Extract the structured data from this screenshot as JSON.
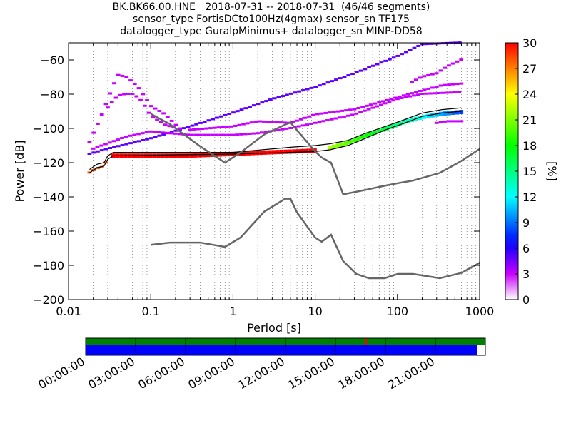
{
  "header": {
    "line1": "BK.BK66.00.HNE   2018-07-31 -- 2018-07-31  (46/46 segments)",
    "line2": "sensor_type FortisDCto100Hz(4gmax) sensor_sn TF175",
    "line3": "datalogger_type GuralpMinimus+ datalogger_sn MINP-DD58"
  },
  "chart_data": {
    "type": "heatmap",
    "title": "BK.BK66.00.HNE   2018-07-31 -- 2018-07-31  (46/46 segments)",
    "xlabel": "Period [s]",
    "ylabel": "Power [dB]",
    "xscale": "log",
    "xlim": [
      0.01,
      1000
    ],
    "ylim": [
      -200,
      -50
    ],
    "xticks": [
      0.01,
      0.1,
      1,
      10,
      100,
      1000
    ],
    "xtick_labels": [
      "0.01",
      "0.1",
      "1",
      "10",
      "100",
      "1000"
    ],
    "yticks": [
      -200,
      -180,
      -160,
      -140,
      -120,
      -100,
      -80,
      -60
    ],
    "ytick_labels": [
      "−200",
      "−180",
      "−160",
      "−140",
      "−120",
      "−100",
      "−80",
      "−60"
    ],
    "colorbar": {
      "label": "[%]",
      "range": [
        0,
        30
      ],
      "ticks": [
        0,
        3,
        6,
        9,
        12,
        15,
        18,
        21,
        24,
        27,
        30
      ],
      "tick_labels": [
        "0",
        "3",
        "6",
        "9",
        "12",
        "15",
        "18",
        "21",
        "24",
        "27",
        "30"
      ]
    },
    "noise_models": [
      {
        "name": "NHNM",
        "x": [
          0.1,
          0.17,
          0.4,
          0.8,
          1.24,
          2.4,
          4.3,
          5,
          6,
          10,
          12,
          15.6,
          21.9,
          31.6,
          45,
          70,
          101,
          154,
          328,
          600,
          1000
        ],
        "y": [
          -91.5,
          -97.4,
          -110.5,
          -120,
          -114,
          -103.5,
          -97.8,
          -96.5,
          -101,
          -113.5,
          -117,
          -120,
          -138.5,
          -137,
          -135.5,
          -133.5,
          -132,
          -130.5,
          -126,
          -119,
          -112
        ]
      },
      {
        "name": "NLNM",
        "x": [
          0.1,
          0.17,
          0.4,
          0.8,
          1.24,
          2.4,
          4.3,
          5,
          6,
          10,
          12,
          15.6,
          21.9,
          31.6,
          45,
          70,
          101,
          154,
          328,
          600,
          1000
        ],
        "y": [
          -168,
          -166.7,
          -166.7,
          -169.2,
          -163.7,
          -148.6,
          -141.1,
          -141.1,
          -149,
          -163.8,
          -166.2,
          -162.1,
          -177.5,
          -185,
          -187.5,
          -187.5,
          -185,
          -185,
          -187.5,
          -184.4,
          -178.5
        ]
      }
    ],
    "percentile_lines": [
      {
        "name": "mode",
        "x": [
          0.018,
          0.022,
          0.027,
          0.03,
          0.035,
          1,
          10,
          15,
          25,
          40,
          70,
          120,
          200,
          350,
          600
        ],
        "y": [
          -126,
          -123,
          -122,
          -118,
          -116,
          -115,
          -113.5,
          -112.5,
          -110,
          -106,
          -101,
          -97,
          -93,
          -91,
          -90
        ]
      },
      {
        "name": "upper",
        "x": [
          0.018,
          0.022,
          0.027,
          0.03,
          0.035,
          1,
          5,
          10,
          15,
          25,
          40,
          70,
          120,
          200,
          350,
          600
        ],
        "y": [
          -124,
          -121,
          -120,
          -116,
          -114,
          -114,
          -111,
          -110,
          -109,
          -107,
          -103,
          -99,
          -95,
          -91,
          -89,
          -88
        ]
      }
    ],
    "data_bands": [
      {
        "name": "main-band",
        "color_pct": 30,
        "x": [
          0.035,
          0.3,
          1,
          3,
          6,
          10
        ],
        "y": [
          -115.5,
          -115.5,
          -114.5,
          -113.5,
          -113,
          -112.5
        ]
      },
      {
        "name": "long-period-band",
        "color_pct": 15,
        "x": [
          15,
          25,
          40,
          70,
          120,
          200,
          350,
          600
        ],
        "y": [
          -111,
          -108,
          -104,
          -100,
          -96,
          -93,
          -91,
          -90
        ]
      },
      {
        "name": "early-points",
        "color_pct": 28,
        "x": [
          0.018,
          0.022,
          0.027,
          0.03
        ],
        "y": [
          -126,
          -123.5,
          -122.5,
          -118
        ]
      },
      {
        "name": "rising-trace",
        "color_pct": 5,
        "x": [
          0.018,
          0.03,
          0.1,
          0.3,
          1,
          3,
          10,
          30,
          100,
          200,
          600
        ],
        "y": [
          -115,
          -112,
          -106,
          -99,
          -91,
          -83,
          -76,
          -68,
          -58,
          -51,
          -50
        ]
      },
      {
        "name": "upper-hump",
        "color_pct": 3,
        "x": [
          0.018,
          0.025,
          0.035,
          0.04,
          0.05,
          0.06,
          0.07,
          0.08,
          0.1,
          0.15,
          0.2,
          0.25
        ],
        "y": [
          -108,
          -93,
          -75,
          -69,
          -70,
          -73,
          -76,
          -80,
          -87,
          -92,
          -98,
          -102
        ]
      },
      {
        "name": "second-hump",
        "color_pct": 3,
        "x": [
          0.03,
          0.035,
          0.04,
          0.05,
          0.06,
          0.07,
          0.08,
          0.1,
          0.15,
          0.2
        ],
        "y": [
          -88,
          -84,
          -81,
          -80,
          -80,
          -82,
          -85,
          -93,
          -98,
          -100
        ]
      },
      {
        "name": "mid-trace",
        "color_pct": 3,
        "x": [
          0.02,
          0.05,
          0.1,
          0.3,
          0.5,
          1,
          2,
          5,
          10,
          30,
          100,
          200,
          600
        ],
        "y": [
          -112,
          -105,
          -102,
          -104,
          -104,
          -104,
          -103,
          -100,
          -97,
          -92,
          -83,
          -80,
          -79
        ]
      },
      {
        "name": "low-trace",
        "color_pct": 3,
        "x": [
          0.3,
          1,
          2,
          5,
          10,
          30,
          60,
          100,
          200,
          350,
          600
        ],
        "y": [
          -101,
          -99,
          -96,
          -97,
          -92,
          -89,
          -85,
          -82,
          -78,
          -75,
          -74
        ]
      },
      {
        "name": "upper-right-trace",
        "color_pct": 3,
        "x": [
          150,
          200,
          300,
          400,
          600
        ],
        "y": [
          -73,
          -70,
          -68,
          -64,
          -60
        ]
      },
      {
        "name": "lower-right-trace",
        "color_pct": 3,
        "x": [
          300,
          400,
          600
        ],
        "y": [
          -97,
          -96,
          -96
        ]
      }
    ],
    "timeline": {
      "tick_labels": [
        "00:00:00",
        "03:00:00",
        "06:00:00",
        "09:00:00",
        "12:00:00",
        "15:00:00",
        "18:00:00",
        "21:00:00"
      ],
      "coverage_fraction": 0.979,
      "gap_marker_fraction": 0.7,
      "colors": {
        "data_available": "#008000",
        "coverage": "#0000ff",
        "gap": "#ff0000"
      }
    }
  }
}
